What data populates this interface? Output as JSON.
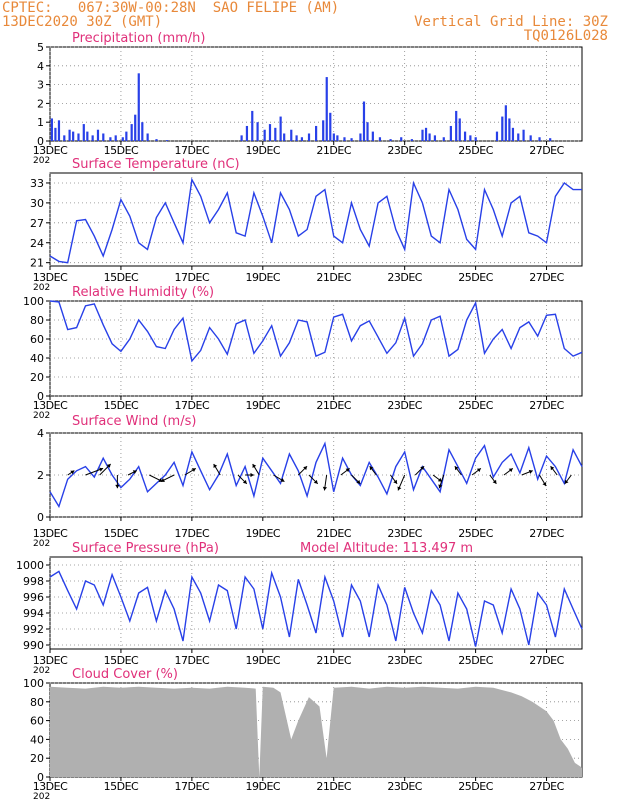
{
  "header": {
    "line1": "CPTEC:   067:30W-00:28N  SAO FELIPE (AM)",
    "line2": "13DEC2020 30Z (GMT)",
    "right1": "Vertical Grid Line: 30Z",
    "right2": "TQ0126L028"
  },
  "colors": {
    "header": "#e8893a",
    "title": "#e0307a",
    "line": "#2840e8",
    "bar": "#2840e8",
    "cloud": "#b0b0b0",
    "grid": "#888888"
  },
  "x_ticks": [
    "13DEC",
    "15DEC",
    "17DEC",
    "19DEC",
    "21DEC",
    "23DEC",
    "25DEC",
    "27DEC"
  ],
  "x_tick_days": [
    0,
    2,
    4,
    6,
    8,
    10,
    12,
    14
  ],
  "x_axis_cut_label": "202",
  "chart_data": [
    {
      "type": "bar",
      "title": "Precipitation (mm/h)",
      "ylim": [
        0,
        5
      ],
      "yticks": [
        0,
        1,
        2,
        3,
        4,
        5
      ],
      "xlim": [
        0,
        15
      ],
      "events": [
        {
          "x": 0.05,
          "v": 1.2
        },
        {
          "x": 0.15,
          "v": 0.7
        },
        {
          "x": 0.25,
          "v": 1.1
        },
        {
          "x": 0.4,
          "v": 0.3
        },
        {
          "x": 0.55,
          "v": 0.6
        },
        {
          "x": 0.65,
          "v": 0.5
        },
        {
          "x": 0.8,
          "v": 0.4
        },
        {
          "x": 0.95,
          "v": 0.9
        },
        {
          "x": 1.05,
          "v": 0.5
        },
        {
          "x": 1.2,
          "v": 0.3
        },
        {
          "x": 1.35,
          "v": 0.6
        },
        {
          "x": 1.5,
          "v": 0.4
        },
        {
          "x": 1.7,
          "v": 0.2
        },
        {
          "x": 1.85,
          "v": 0.3
        },
        {
          "x": 2.05,
          "v": 0.2
        },
        {
          "x": 2.15,
          "v": 0.5
        },
        {
          "x": 2.3,
          "v": 0.9
        },
        {
          "x": 2.4,
          "v": 1.4
        },
        {
          "x": 2.5,
          "v": 3.6
        },
        {
          "x": 2.6,
          "v": 1.0
        },
        {
          "x": 2.75,
          "v": 0.4
        },
        {
          "x": 3.0,
          "v": 0.1
        },
        {
          "x": 3.3,
          "v": 0.05
        },
        {
          "x": 5.4,
          "v": 0.3
        },
        {
          "x": 5.55,
          "v": 0.8
        },
        {
          "x": 5.7,
          "v": 1.6
        },
        {
          "x": 5.85,
          "v": 1.0
        },
        {
          "x": 6.05,
          "v": 0.6
        },
        {
          "x": 6.2,
          "v": 0.9
        },
        {
          "x": 6.35,
          "v": 0.7
        },
        {
          "x": 6.5,
          "v": 1.3
        },
        {
          "x": 6.6,
          "v": 0.4
        },
        {
          "x": 6.8,
          "v": 0.6
        },
        {
          "x": 6.95,
          "v": 0.3
        },
        {
          "x": 7.1,
          "v": 0.2
        },
        {
          "x": 7.3,
          "v": 0.4
        },
        {
          "x": 7.5,
          "v": 0.8
        },
        {
          "x": 7.7,
          "v": 1.1
        },
        {
          "x": 7.8,
          "v": 3.4
        },
        {
          "x": 7.9,
          "v": 1.5
        },
        {
          "x": 8.0,
          "v": 0.4
        },
        {
          "x": 8.1,
          "v": 0.3
        },
        {
          "x": 8.3,
          "v": 0.2
        },
        {
          "x": 8.5,
          "v": 0.15
        },
        {
          "x": 8.75,
          "v": 0.4
        },
        {
          "x": 8.85,
          "v": 2.1
        },
        {
          "x": 8.95,
          "v": 1.0
        },
        {
          "x": 9.1,
          "v": 0.5
        },
        {
          "x": 9.3,
          "v": 0.2
        },
        {
          "x": 9.6,
          "v": 0.1
        },
        {
          "x": 9.9,
          "v": 0.2
        },
        {
          "x": 10.2,
          "v": 0.1
        },
        {
          "x": 10.5,
          "v": 0.6
        },
        {
          "x": 10.6,
          "v": 0.7
        },
        {
          "x": 10.7,
          "v": 0.4
        },
        {
          "x": 10.85,
          "v": 0.3
        },
        {
          "x": 11.1,
          "v": 0.2
        },
        {
          "x": 11.3,
          "v": 0.8
        },
        {
          "x": 11.45,
          "v": 1.6
        },
        {
          "x": 11.55,
          "v": 1.2
        },
        {
          "x": 11.7,
          "v": 0.5
        },
        {
          "x": 11.85,
          "v": 0.3
        },
        {
          "x": 12.0,
          "v": 0.2
        },
        {
          "x": 12.6,
          "v": 0.5
        },
        {
          "x": 12.75,
          "v": 1.3
        },
        {
          "x": 12.85,
          "v": 1.9
        },
        {
          "x": 12.95,
          "v": 1.2
        },
        {
          "x": 13.05,
          "v": 0.7
        },
        {
          "x": 13.2,
          "v": 0.4
        },
        {
          "x": 13.35,
          "v": 0.6
        },
        {
          "x": 13.55,
          "v": 0.3
        },
        {
          "x": 13.8,
          "v": 0.2
        },
        {
          "x": 14.1,
          "v": 0.15
        }
      ]
    },
    {
      "type": "line",
      "title": "Surface Temperature (nC)",
      "ylim": [
        20.5,
        34.5
      ],
      "yticks": [
        21,
        24,
        27,
        30,
        33
      ],
      "xlim": [
        0,
        15
      ],
      "x": [
        0,
        0.25,
        0.5,
        0.75,
        1.0,
        1.25,
        1.5,
        1.75,
        2.0,
        2.25,
        2.5,
        2.75,
        3.0,
        3.25,
        3.5,
        3.75,
        4.0,
        4.25,
        4.5,
        4.75,
        5.0,
        5.25,
        5.5,
        5.75,
        6.0,
        6.25,
        6.5,
        6.75,
        7.0,
        7.25,
        7.5,
        7.75,
        8.0,
        8.25,
        8.5,
        8.75,
        9.0,
        9.25,
        9.5,
        9.75,
        10.0,
        10.25,
        10.5,
        10.75,
        11.0,
        11.25,
        11.5,
        11.75,
        12.0,
        12.25,
        12.5,
        12.75,
        13.0,
        13.25,
        13.5,
        13.75,
        14.0,
        14.25,
        14.5,
        14.75,
        15.0
      ],
      "values": [
        22,
        21.2,
        21,
        27.3,
        27.5,
        25,
        22,
        26,
        30.5,
        28,
        24,
        23,
        27.8,
        30,
        27,
        24,
        33.5,
        31,
        27,
        29,
        31.5,
        25.5,
        25,
        31.5,
        28,
        24,
        31.5,
        29,
        25,
        26,
        31,
        32,
        25,
        24,
        30,
        26,
        23.5,
        30,
        31,
        26,
        23,
        33,
        30,
        25,
        24,
        32,
        29,
        24.5,
        23,
        32,
        29,
        25,
        30,
        31,
        25.5,
        25,
        24,
        31,
        33,
        32,
        32
      ]
    },
    {
      "type": "line",
      "title": "Relative Humidity (%)",
      "ylim": [
        0,
        100
      ],
      "yticks": [
        0,
        20,
        40,
        60,
        80,
        100
      ],
      "xlim": [
        0,
        15
      ],
      "x": [
        0,
        0.25,
        0.5,
        0.75,
        1.0,
        1.25,
        1.5,
        1.75,
        2.0,
        2.25,
        2.5,
        2.75,
        3.0,
        3.25,
        3.5,
        3.75,
        4.0,
        4.25,
        4.5,
        4.75,
        5.0,
        5.25,
        5.5,
        5.75,
        6.0,
        6.25,
        6.5,
        6.75,
        7.0,
        7.25,
        7.5,
        7.75,
        8.0,
        8.25,
        8.5,
        8.75,
        9.0,
        9.25,
        9.5,
        9.75,
        10.0,
        10.25,
        10.5,
        10.75,
        11.0,
        11.25,
        11.5,
        11.75,
        12.0,
        12.25,
        12.5,
        12.75,
        13.0,
        13.25,
        13.5,
        13.75,
        14.0,
        14.25,
        14.5,
        14.75,
        15.0
      ],
      "values": [
        100,
        99,
        70,
        72,
        95,
        97,
        75,
        55,
        47,
        60,
        80,
        68,
        52,
        50,
        70,
        82,
        37,
        48,
        72,
        60,
        44,
        76,
        80,
        45,
        58,
        74,
        42,
        56,
        80,
        78,
        42,
        46,
        83,
        86,
        58,
        74,
        79,
        62,
        45,
        56,
        82,
        42,
        55,
        80,
        84,
        42,
        49,
        80,
        98,
        45,
        60,
        70,
        50,
        72,
        78,
        63,
        85,
        86,
        50,
        42,
        46
      ]
    },
    {
      "type": "line",
      "title": "Surface Wind (m/s)",
      "ylim": [
        0,
        4
      ],
      "yticks": [
        0,
        2,
        4
      ],
      "xlim": [
        0,
        15
      ],
      "x": [
        0,
        0.25,
        0.5,
        0.75,
        1.0,
        1.25,
        1.5,
        1.75,
        2.0,
        2.25,
        2.5,
        2.75,
        3.0,
        3.25,
        3.5,
        3.75,
        4.0,
        4.25,
        4.5,
        4.75,
        5.0,
        5.25,
        5.5,
        5.75,
        6.0,
        6.25,
        6.5,
        6.75,
        7.0,
        7.25,
        7.5,
        7.75,
        8.0,
        8.25,
        8.5,
        8.75,
        9.0,
        9.25,
        9.5,
        9.75,
        10.0,
        10.25,
        10.5,
        10.75,
        11.0,
        11.25,
        11.5,
        11.75,
        12.0,
        12.25,
        12.5,
        12.75,
        13.0,
        13.25,
        13.5,
        13.75,
        14.0,
        14.25,
        14.5,
        14.75,
        15.0
      ],
      "values": [
        1.2,
        0.5,
        1.8,
        2.2,
        2.4,
        1.9,
        2.8,
        2.0,
        1.4,
        1.8,
        2.4,
        1.2,
        1.6,
        2.0,
        2.6,
        1.5,
        3.1,
        2.2,
        1.3,
        2.0,
        3.0,
        1.5,
        2.4,
        1.0,
        2.8,
        2.2,
        1.6,
        3.0,
        2.2,
        1.0,
        2.6,
        3.5,
        1.2,
        2.8,
        2.0,
        1.5,
        2.6,
        1.9,
        1.1,
        2.4,
        3.1,
        1.3,
        2.4,
        1.8,
        1.2,
        3.2,
        2.4,
        1.6,
        2.8,
        3.4,
        1.9,
        2.6,
        3.0,
        2.1,
        3.3,
        1.8,
        2.9,
        2.4,
        1.6,
        3.2,
        2.4
      ],
      "vectors": [
        {
          "x": 0.5,
          "u": 0.3,
          "v": 0.2
        },
        {
          "x": 1.0,
          "u": 0.8,
          "v": 0.3
        },
        {
          "x": 1.4,
          "u": 0.5,
          "v": 0.5
        },
        {
          "x": 1.9,
          "u": 0.0,
          "v": -0.6
        },
        {
          "x": 2.2,
          "u": 0.4,
          "v": 0.2
        },
        {
          "x": 2.8,
          "u": 0.6,
          "v": -0.3
        },
        {
          "x": 3.5,
          "u": -0.6,
          "v": -0.3
        },
        {
          "x": 3.8,
          "u": 0.5,
          "v": 0.3
        },
        {
          "x": 4.8,
          "u": -0.3,
          "v": 0.5
        },
        {
          "x": 5.3,
          "u": 0.4,
          "v": -0.4
        },
        {
          "x": 5.5,
          "u": 0.4,
          "v": 0.0
        },
        {
          "x": 5.9,
          "u": -0.3,
          "v": 0.5
        },
        {
          "x": 6.3,
          "u": 0.5,
          "v": -0.3
        },
        {
          "x": 7.0,
          "u": 0.4,
          "v": 0.4
        },
        {
          "x": 7.3,
          "u": 0.4,
          "v": -0.4
        },
        {
          "x": 7.8,
          "u": -0.1,
          "v": -0.7
        },
        {
          "x": 8.2,
          "u": 0.4,
          "v": 0.3
        },
        {
          "x": 8.5,
          "u": 0.4,
          "v": -0.4
        },
        {
          "x": 9.2,
          "u": -0.3,
          "v": 0.4
        },
        {
          "x": 9.6,
          "u": 0.3,
          "v": -0.4
        },
        {
          "x": 10.0,
          "u": -0.3,
          "v": -0.7
        },
        {
          "x": 10.3,
          "u": 0.4,
          "v": 0.4
        },
        {
          "x": 10.8,
          "u": 0.4,
          "v": -0.3
        },
        {
          "x": 11.1,
          "u": -0.2,
          "v": -0.6
        },
        {
          "x": 11.6,
          "u": -0.3,
          "v": 0.4
        },
        {
          "x": 11.9,
          "u": 0.4,
          "v": 0.3
        },
        {
          "x": 12.4,
          "u": 0.3,
          "v": -0.4
        },
        {
          "x": 12.8,
          "u": 0.4,
          "v": 0.3
        },
        {
          "x": 13.3,
          "u": 0.5,
          "v": 0.2
        },
        {
          "x": 13.8,
          "u": 0.3,
          "v": -0.5
        },
        {
          "x": 14.3,
          "u": -0.3,
          "v": 0.4
        },
        {
          "x": 14.7,
          "u": -0.3,
          "v": -0.4
        }
      ]
    },
    {
      "type": "line",
      "title": "Surface Pressure (hPa)",
      "annotation": "Model Altitude: 113.497 m",
      "ylim": [
        989.5,
        1001
      ],
      "yticks": [
        990,
        992,
        994,
        996,
        998,
        1000
      ],
      "xlim": [
        0,
        15
      ],
      "x": [
        0,
        0.25,
        0.5,
        0.75,
        1.0,
        1.25,
        1.5,
        1.75,
        2.0,
        2.25,
        2.5,
        2.75,
        3.0,
        3.25,
        3.5,
        3.75,
        4.0,
        4.25,
        4.5,
        4.75,
        5.0,
        5.25,
        5.5,
        5.75,
        6.0,
        6.25,
        6.5,
        6.75,
        7.0,
        7.25,
        7.5,
        7.75,
        8.0,
        8.25,
        8.5,
        8.75,
        9.0,
        9.25,
        9.5,
        9.75,
        10.0,
        10.25,
        10.5,
        10.75,
        11.0,
        11.25,
        11.5,
        11.75,
        12.0,
        12.25,
        12.5,
        12.75,
        13.0,
        13.25,
        13.5,
        13.75,
        14.0,
        14.25,
        14.5,
        14.75,
        15.0
      ],
      "values": [
        998.5,
        999.2,
        996.8,
        994.5,
        998.0,
        997.5,
        995.0,
        998.8,
        996.0,
        993.0,
        996.5,
        997.2,
        993.0,
        996.8,
        994.5,
        990.5,
        998.5,
        996.5,
        993.0,
        997.5,
        996.8,
        992.0,
        998.5,
        997.0,
        992.0,
        999.0,
        996.0,
        991.0,
        998.2,
        995.0,
        991.5,
        998.5,
        995.5,
        991.0,
        997.5,
        995.5,
        991.0,
        997.5,
        995.0,
        990.5,
        997.2,
        994.0,
        991.5,
        996.8,
        995.0,
        990.5,
        996.5,
        994.5,
        989.8,
        995.5,
        995.0,
        991.5,
        997.0,
        994.5,
        990.0,
        996.5,
        995.0,
        991.0,
        997.0,
        994.5,
        992.0
      ]
    },
    {
      "type": "area",
      "title": "Cloud Cover (%)",
      "ylim": [
        0,
        100
      ],
      "yticks": [
        0,
        20,
        40,
        60,
        80,
        100
      ],
      "xlim": [
        0,
        15
      ],
      "x": [
        0,
        0.5,
        1.0,
        1.5,
        2.0,
        2.5,
        3.0,
        3.5,
        4.0,
        4.5,
        5.0,
        5.5,
        5.8,
        5.9,
        6.0,
        6.3,
        6.5,
        6.8,
        7.0,
        7.3,
        7.6,
        7.8,
        8.0,
        8.5,
        9.0,
        9.5,
        10.0,
        10.5,
        11.0,
        11.5,
        12.0,
        12.5,
        13.0,
        13.3,
        13.6,
        13.8,
        14.0,
        14.2,
        14.4,
        14.6,
        14.8,
        15.0
      ],
      "values": [
        96,
        95,
        94,
        96,
        95,
        96,
        95,
        94,
        95,
        94,
        96,
        95,
        94,
        0,
        96,
        95,
        90,
        40,
        60,
        85,
        75,
        20,
        95,
        96,
        94,
        96,
        95,
        96,
        95,
        94,
        96,
        95,
        90,
        86,
        80,
        75,
        70,
        60,
        40,
        30,
        15,
        10
      ]
    }
  ]
}
